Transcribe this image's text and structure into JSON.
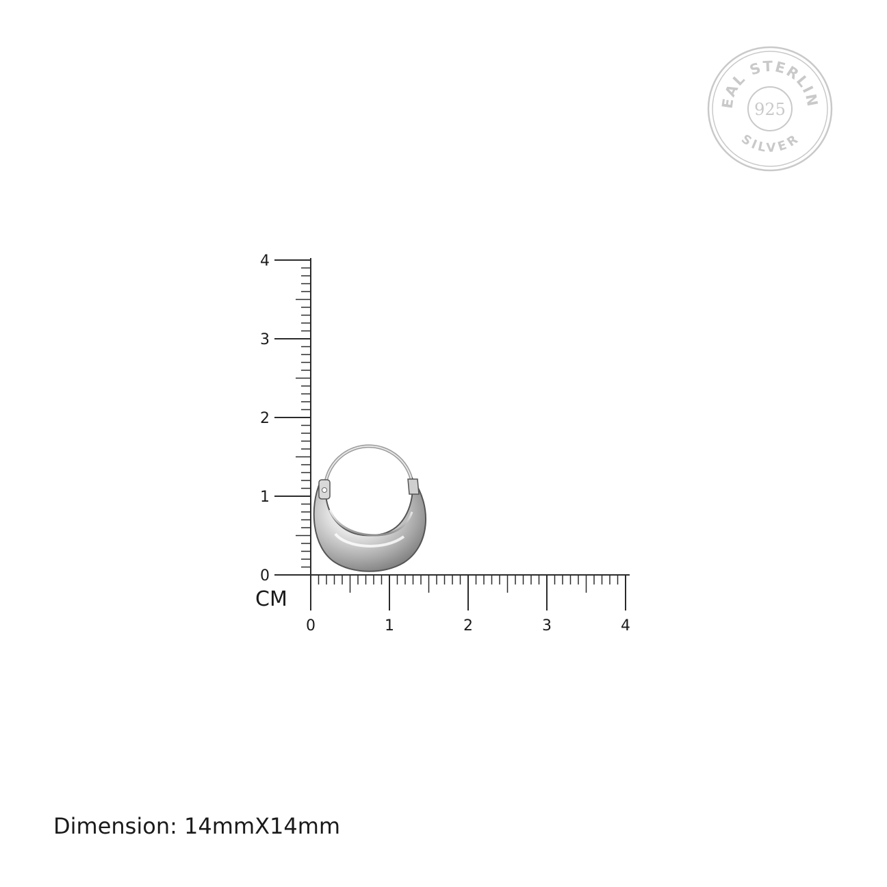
{
  "badge": {
    "top_text": "REAL STERLING",
    "center_text": "925",
    "bottom_text": "SILVER",
    "color": "#c9c9c9"
  },
  "ruler": {
    "unit": "CM",
    "x_ticks": [
      "0",
      "1",
      "2",
      "3",
      "4"
    ],
    "y_ticks": [
      "0",
      "1",
      "2",
      "3",
      "4"
    ],
    "minor_divisions": 10,
    "line_color": "#2a2a2a"
  },
  "product": {
    "icon": "silver-hoop-earring",
    "metal_color": "#bdbdbd"
  },
  "caption": {
    "text": "Dimension: 14mmX14mm"
  }
}
